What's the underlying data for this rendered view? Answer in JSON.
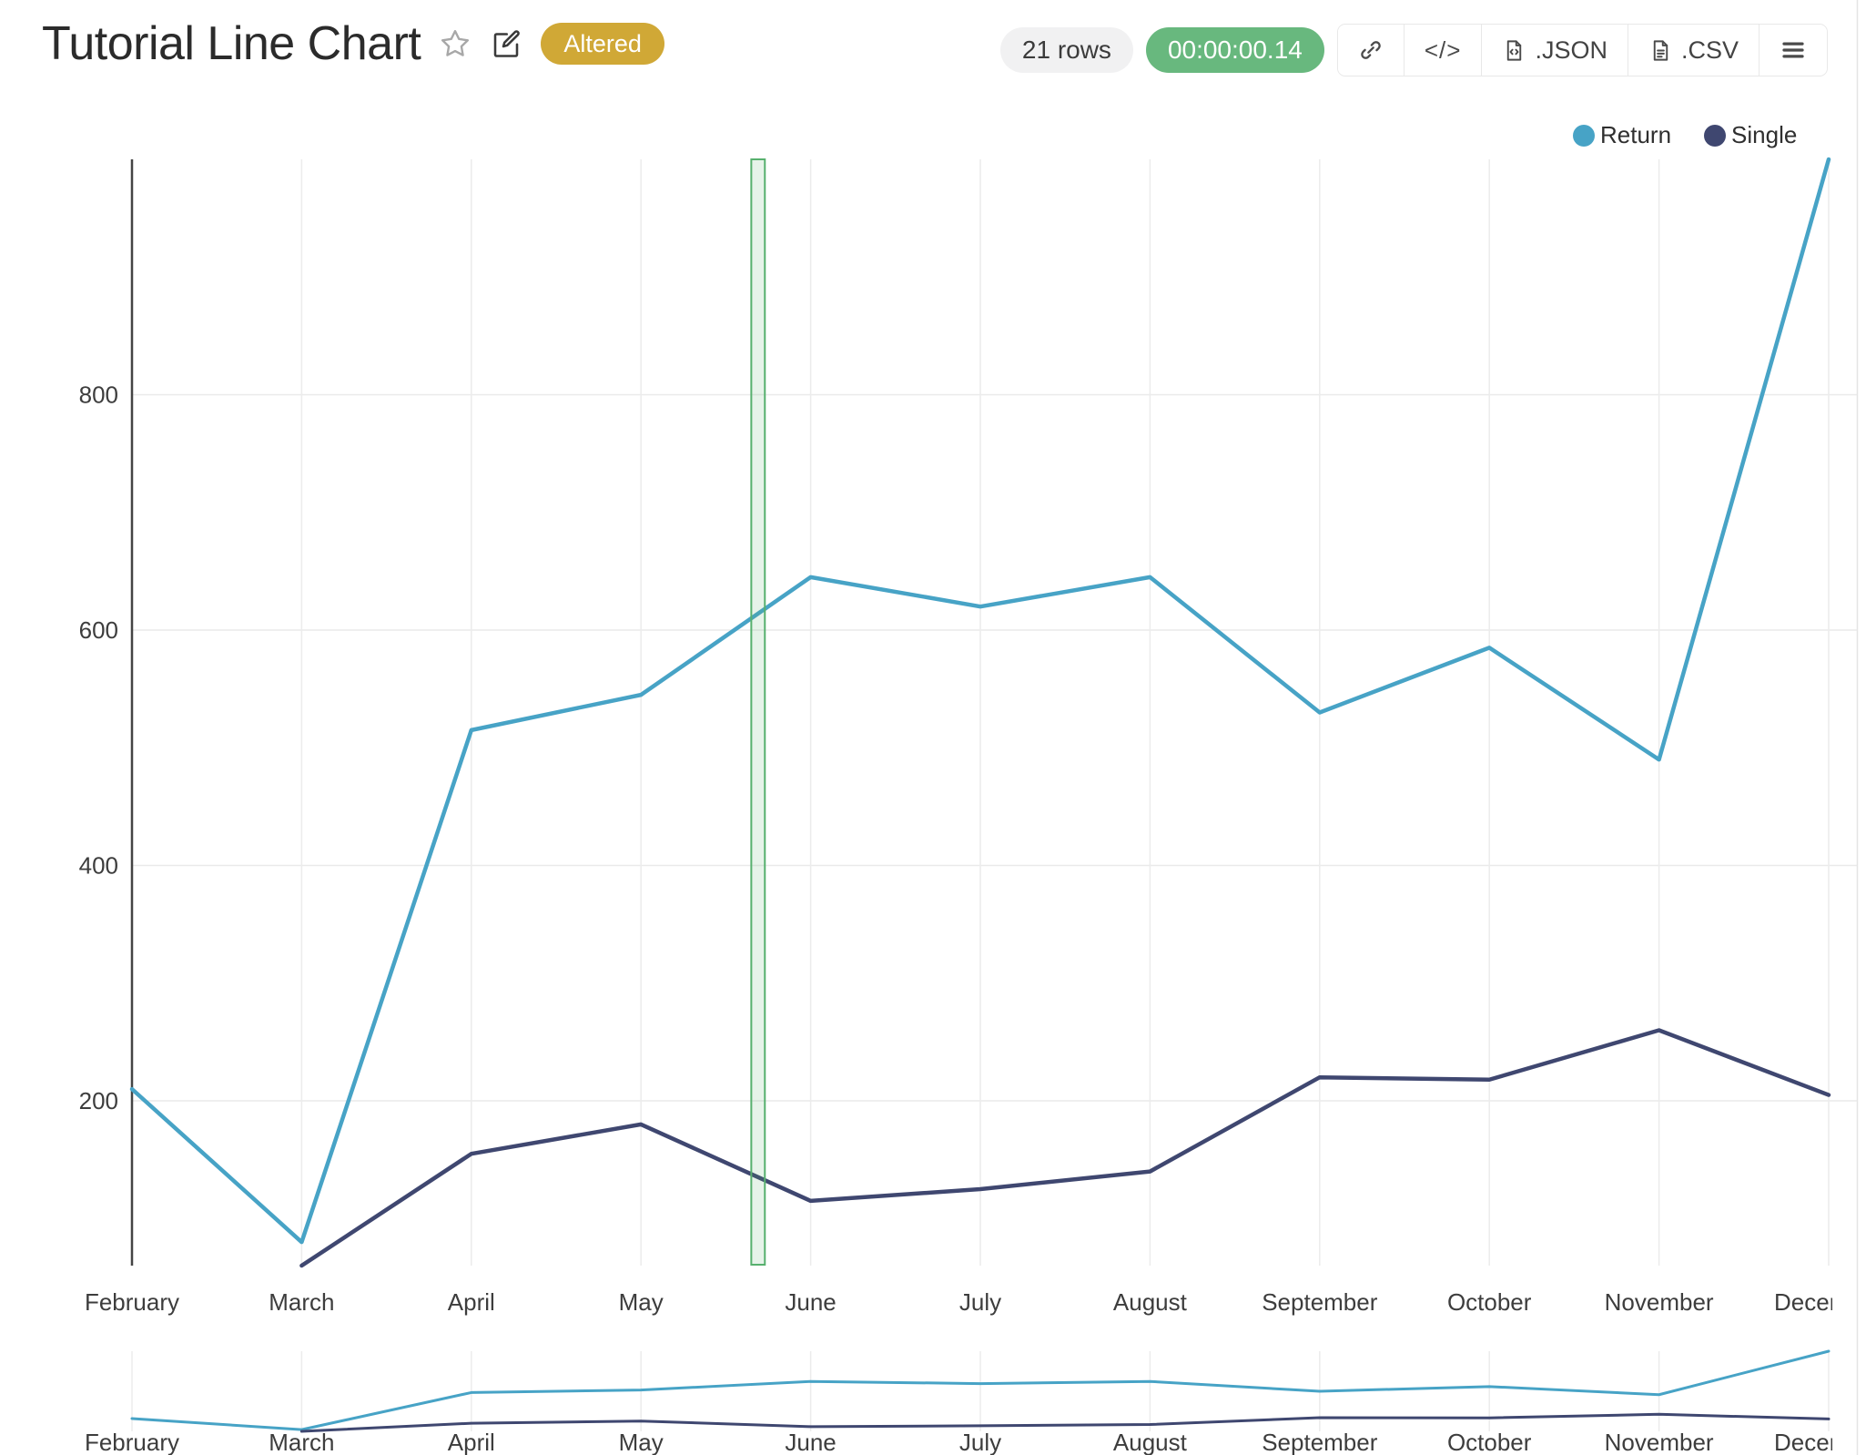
{
  "header": {
    "title": "Tutorial Line Chart",
    "status_badge": "Altered",
    "rows_label": "21 rows",
    "duration": "00:00:00.14",
    "toolbar": {
      "embed_label": "</>",
      "json_label": ".JSON",
      "csv_label": ".CSV"
    }
  },
  "legend": [
    {
      "label": "Return"
    },
    {
      "label": "Single"
    }
  ],
  "colors": {
    "return_line": "#47a3c6",
    "single_line": "#3f4770",
    "altered_badge": "#d0a836",
    "duration_badge": "#68b87e",
    "rows_badge": "#f1f1f2",
    "selection_green": "#57b06e",
    "grid": "#eaeaea",
    "axis": "#444444",
    "tick_text": "#3d3d3d"
  },
  "chart_data": {
    "type": "line",
    "title": "Tutorial Line Chart",
    "categories": [
      "February",
      "March",
      "April",
      "May",
      "June",
      "July",
      "August",
      "September",
      "October",
      "November",
      "December"
    ],
    "series": [
      {
        "name": "Return",
        "color": "#47a3c6",
        "values": [
          210,
          80,
          515,
          545,
          645,
          620,
          645,
          530,
          585,
          490,
          1000
        ]
      },
      {
        "name": "Single",
        "color": "#3f4770",
        "values": [
          null,
          60,
          155,
          180,
          115,
          125,
          140,
          220,
          218,
          260,
          205
        ]
      }
    ],
    "xlabel": "",
    "ylabel": "",
    "ylim": [
      60,
      1000
    ],
    "yticks": [
      200,
      400,
      600,
      800
    ],
    "grid": true,
    "legend_position": "top-right",
    "selection_band": {
      "from_index": 3.65,
      "to_index": 3.73,
      "color": "#57b06e"
    },
    "rangeslider": true
  }
}
